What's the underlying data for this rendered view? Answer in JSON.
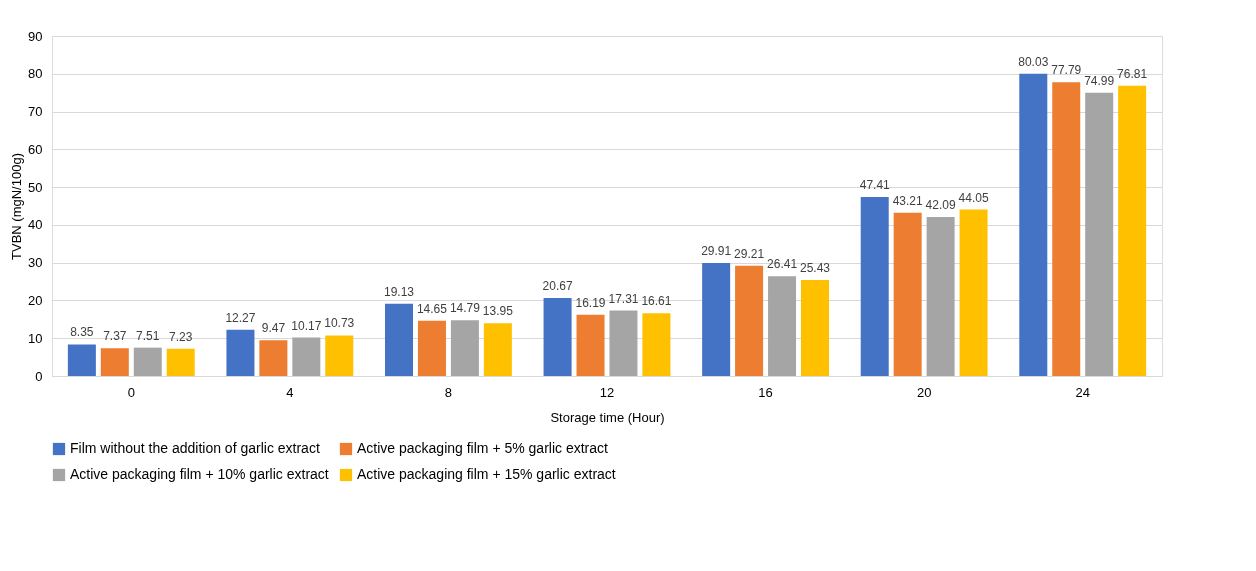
{
  "chart_data": {
    "type": "bar",
    "xlabel": "Storage time (Hour)",
    "ylabel": "TVBN (mgN/100g)",
    "categories": [
      "0",
      "4",
      "8",
      "12",
      "16",
      "20",
      "24"
    ],
    "series": [
      {
        "name": "Film without the addition of garlic extract",
        "color": "#4472c4",
        "values": [
          8.35,
          12.27,
          19.13,
          20.67,
          29.91,
          47.41,
          80.03
        ]
      },
      {
        "name": "Active packaging film + 5% garlic extract",
        "color": "#ed7d31",
        "values": [
          7.37,
          9.47,
          14.65,
          16.19,
          29.21,
          43.21,
          77.79
        ]
      },
      {
        "name": "Active packaging film + 10% garlic extract",
        "color": "#a5a5a5",
        "values": [
          7.51,
          10.17,
          14.79,
          17.31,
          26.41,
          42.09,
          74.99
        ]
      },
      {
        "name": "Active packaging film + 15% garlic extract",
        "color": "#ffc000",
        "values": [
          7.23,
          10.73,
          13.95,
          16.61,
          25.43,
          44.05,
          76.81
        ]
      }
    ],
    "ylim": [
      0,
      90
    ],
    "yticks": [
      0,
      10,
      20,
      30,
      40,
      50,
      60,
      70,
      80,
      90
    ],
    "grid": "y",
    "legend": "bottom",
    "data_labels": true
  }
}
